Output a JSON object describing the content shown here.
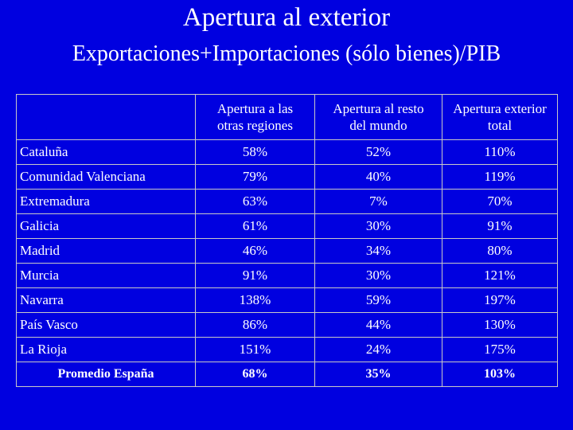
{
  "header": {
    "title": "Apertura al exterior",
    "subtitle": "Exportaciones+Importaciones (sólo bienes)/PIB"
  },
  "table": {
    "columns": [
      "Apertura a las otras regiones",
      "Apertura al resto del mundo",
      "Apertura exterior total"
    ],
    "rows": [
      [
        "Cataluña",
        "58%",
        "52%",
        "110%"
      ],
      [
        "Comunidad Valenciana",
        "79%",
        "40%",
        "119%"
      ],
      [
        "Extremadura",
        "63%",
        "7%",
        "70%"
      ],
      [
        "Galicia",
        "61%",
        "30%",
        "91%"
      ],
      [
        "Madrid",
        "46%",
        "34%",
        "80%"
      ],
      [
        "Murcia",
        "91%",
        "30%",
        "121%"
      ],
      [
        "Navarra",
        "138%",
        "59%",
        "197%"
      ],
      [
        "País Vasco",
        "86%",
        "44%",
        "130%"
      ],
      [
        "La Rioja",
        "151%",
        "24%",
        "175%"
      ]
    ],
    "summary": [
      "Promedio España",
      "68%",
      "35%",
      "103%"
    ]
  }
}
